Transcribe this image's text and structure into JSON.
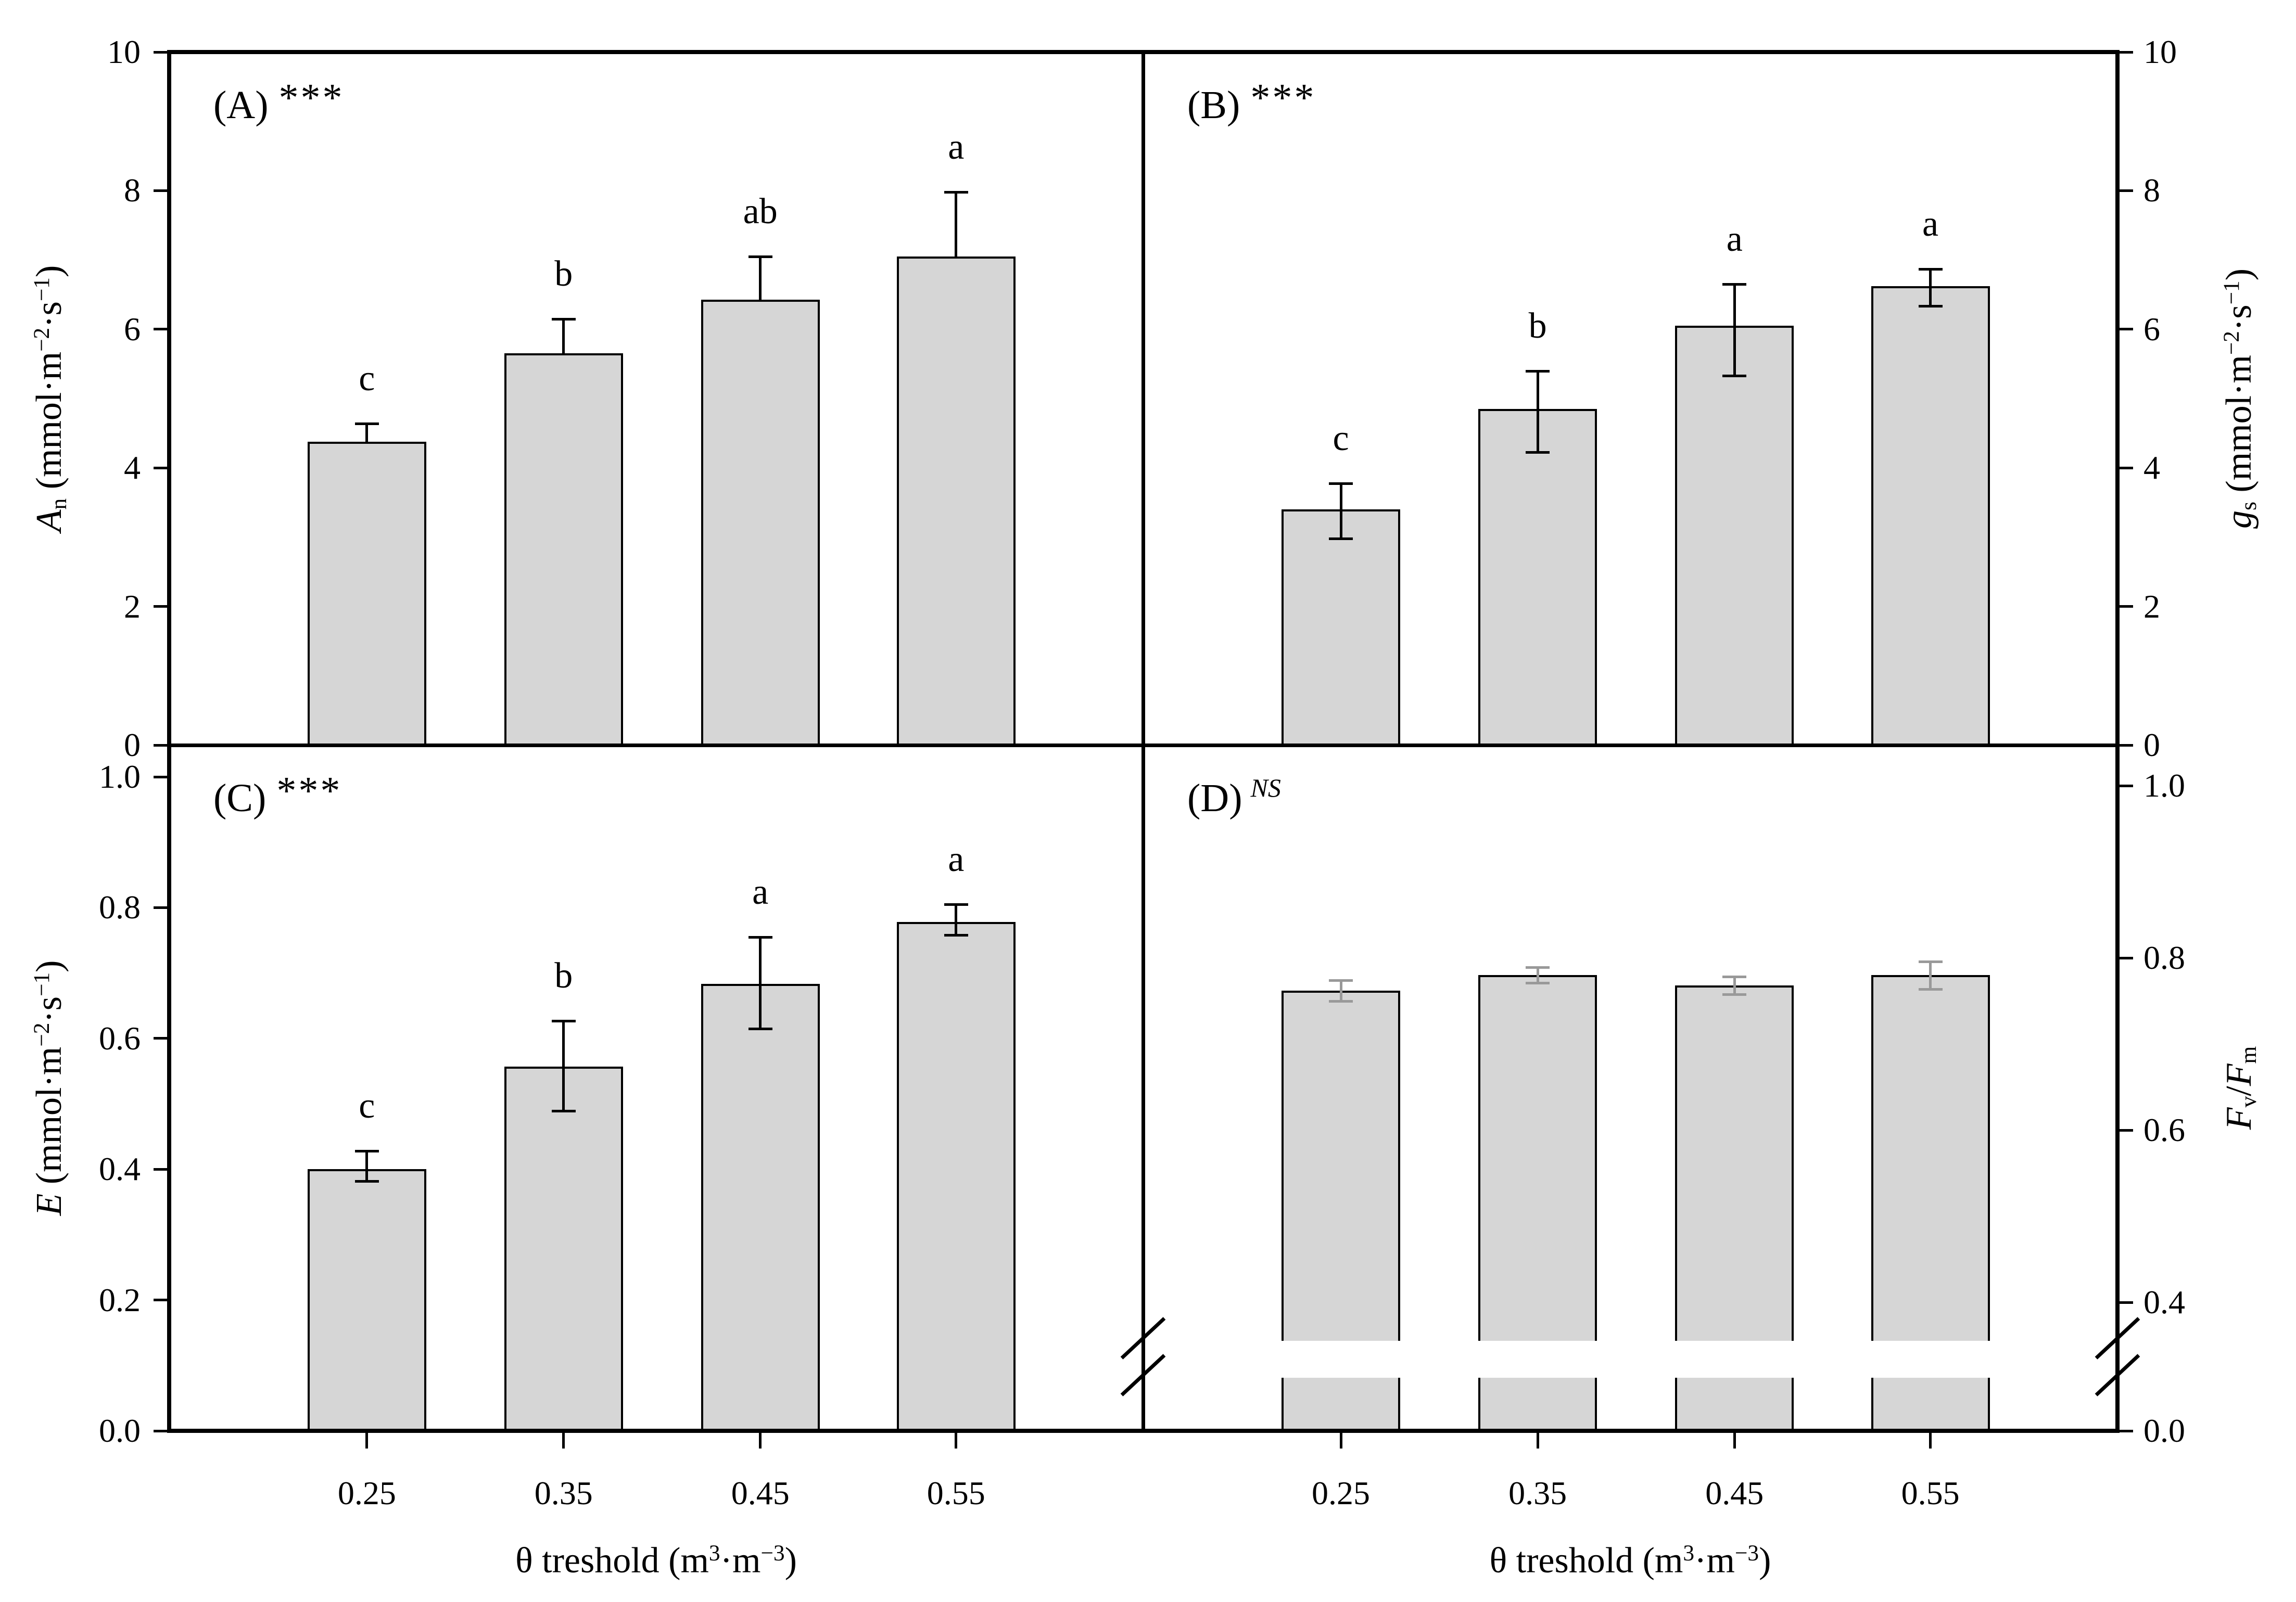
{
  "figure": {
    "background": "#ffffff"
  },
  "chart_data": {
    "type": "bar",
    "layout": "2x2-panel-grid",
    "x_tick_labels": [
      "0.25",
      "0.35",
      "0.45",
      "0.55"
    ],
    "xlabel_segments": [
      {
        "t": "θ treshold (m"
      },
      {
        "t": "3",
        "s": "sup"
      },
      {
        "t": "·m"
      },
      {
        "t": "−3",
        "s": "sup"
      },
      {
        "t": ")"
      }
    ],
    "colors": {
      "bar_fill": "#d6d6d6",
      "bar_stroke": "#000000",
      "error_black": "#000000",
      "error_gray": "#999999"
    },
    "panels": [
      {
        "id": "A",
        "label": "(A)",
        "significance": "***",
        "sig_style": "stars",
        "axis_side": "left",
        "ylim": [
          0,
          10
        ],
        "yticks": [
          {
            "v": 0,
            "t": "0"
          },
          {
            "v": 2,
            "t": "2"
          },
          {
            "v": 4,
            "t": "4"
          },
          {
            "v": 6,
            "t": "6"
          },
          {
            "v": 8,
            "t": "8"
          },
          {
            "v": 10,
            "t": "10"
          }
        ],
        "ylabel_segments": [
          {
            "t": "A",
            "s": "i"
          },
          {
            "t": "n",
            "s": "sub"
          },
          {
            "t": " (mmol·m"
          },
          {
            "t": "−2",
            "s": "sup"
          },
          {
            "t": "·s"
          },
          {
            "t": "−1",
            "s": "sup"
          },
          {
            "t": ")"
          }
        ],
        "values": [
          4.38,
          5.65,
          6.43,
          7.05
        ],
        "err_up": [
          0.26,
          0.5,
          0.62,
          0.93
        ],
        "err_down": [
          0,
          0,
          0,
          0
        ],
        "letters": [
          "c",
          "b",
          "ab",
          "a"
        ],
        "err_color": "black",
        "axis_break": false
      },
      {
        "id": "B",
        "label": "(B)",
        "significance": "***",
        "sig_style": "stars",
        "axis_side": "right",
        "ylim": [
          0,
          10
        ],
        "yticks": [
          {
            "v": 0,
            "t": "0"
          },
          {
            "v": 2,
            "t": "2"
          },
          {
            "v": 4,
            "t": "4"
          },
          {
            "v": 6,
            "t": "6"
          },
          {
            "v": 8,
            "t": "8"
          },
          {
            "v": 10,
            "t": "10"
          }
        ],
        "ylabel_segments": [
          {
            "t": "g",
            "s": "i"
          },
          {
            "t": "s",
            "s": "sub"
          },
          {
            "t": " (mmol·m"
          },
          {
            "t": "−2",
            "s": "sup"
          },
          {
            "t": "·s"
          },
          {
            "t": "−1",
            "s": "sup"
          },
          {
            "t": ")"
          }
        ],
        "values": [
          3.4,
          4.85,
          6.05,
          6.62
        ],
        "err_up": [
          0.38,
          0.55,
          0.6,
          0.25
        ],
        "err_down": [
          0.42,
          0.62,
          0.72,
          0.28
        ],
        "letters": [
          "c",
          "b",
          "a",
          "a"
        ],
        "err_color": "black",
        "axis_break": false
      },
      {
        "id": "C",
        "label": "(C)",
        "significance": "***",
        "sig_style": "stars",
        "axis_side": "left",
        "ylim": [
          0,
          1.05
        ],
        "yticks": [
          {
            "v": 0.0,
            "t": "0.0"
          },
          {
            "v": 0.2,
            "t": "0.2"
          },
          {
            "v": 0.4,
            "t": "0.4"
          },
          {
            "v": 0.6,
            "t": "0.6"
          },
          {
            "v": 0.8,
            "t": "0.8"
          },
          {
            "v": 1.0,
            "t": "1.0"
          }
        ],
        "ylabel_segments": [
          {
            "t": "E",
            "s": "i"
          },
          {
            "t": " (mmol·m"
          },
          {
            "t": "−2",
            "s": "sup"
          },
          {
            "t": "·s"
          },
          {
            "t": "−1",
            "s": "sup"
          },
          {
            "t": ")"
          }
        ],
        "values": [
          0.4,
          0.557,
          0.683,
          0.778
        ],
        "err_up": [
          0.028,
          0.07,
          0.072,
          0.027
        ],
        "err_down": [
          0.018,
          0.068,
          0.068,
          0.02
        ],
        "letters": [
          "c",
          "b",
          "a",
          "a"
        ],
        "err_color": "black",
        "axis_break": false
      },
      {
        "id": "D",
        "label": "(D)",
        "significance": "NS",
        "sig_style": "ns",
        "axis_side": "right",
        "ylim": [
          0,
          1.05
        ],
        "yticks": [
          {
            "v": 0.0,
            "t": "0.0"
          },
          {
            "v": 0.4,
            "t": "0.4"
          },
          {
            "v": 0.6,
            "t": "0.6"
          },
          {
            "v": 0.8,
            "t": "0.8"
          },
          {
            "v": 1.0,
            "t": "1.0"
          }
        ],
        "ylabel_segments": [
          {
            "t": "F",
            "s": "i"
          },
          {
            "t": "v",
            "s": "sub"
          },
          {
            "t": "/"
          },
          {
            "t": "F",
            "s": "i"
          },
          {
            "t": "m",
            "s": "sub"
          }
        ],
        "values": [
          0.762,
          0.78,
          0.768,
          0.78
        ],
        "err_up": [
          0.012,
          0.009,
          0.01,
          0.016
        ],
        "err_down": [
          0.012,
          0.009,
          0.01,
          0.016
        ],
        "letters": [
          "",
          "",
          "",
          ""
        ],
        "err_color": "gray",
        "axis_break": true
      }
    ]
  }
}
